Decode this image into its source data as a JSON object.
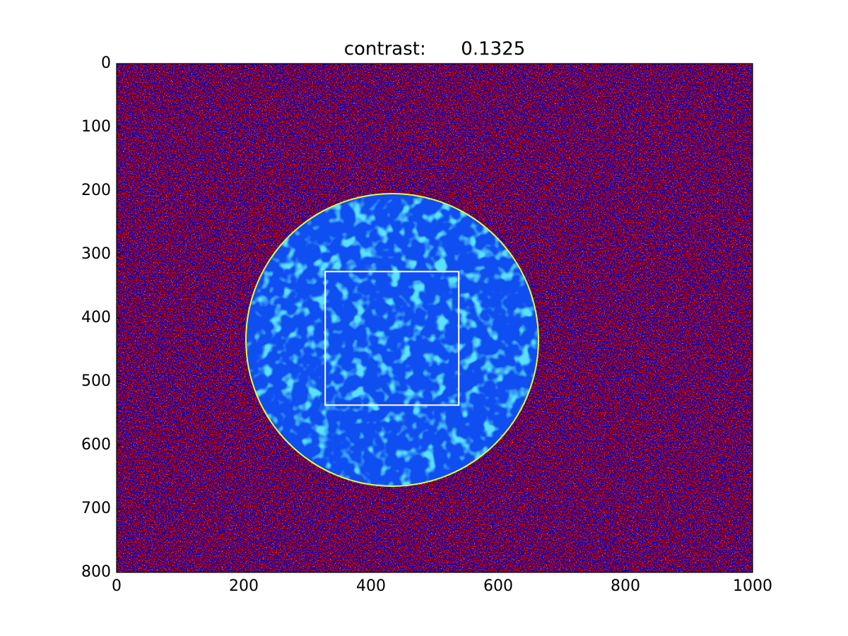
{
  "chart_data": {
    "type": "image",
    "title": "contrast:      0.1325",
    "xlim": [
      0,
      1000
    ],
    "ylim": [
      800,
      0
    ],
    "xticks": [
      0,
      200,
      400,
      600,
      800,
      1000
    ],
    "yticks": [
      0,
      100,
      200,
      300,
      400,
      500,
      600,
      700,
      800
    ],
    "rectangle": {
      "x": [
        328,
        538
      ],
      "y": [
        327,
        537
      ],
      "color": "#ffffff"
    }
  }
}
